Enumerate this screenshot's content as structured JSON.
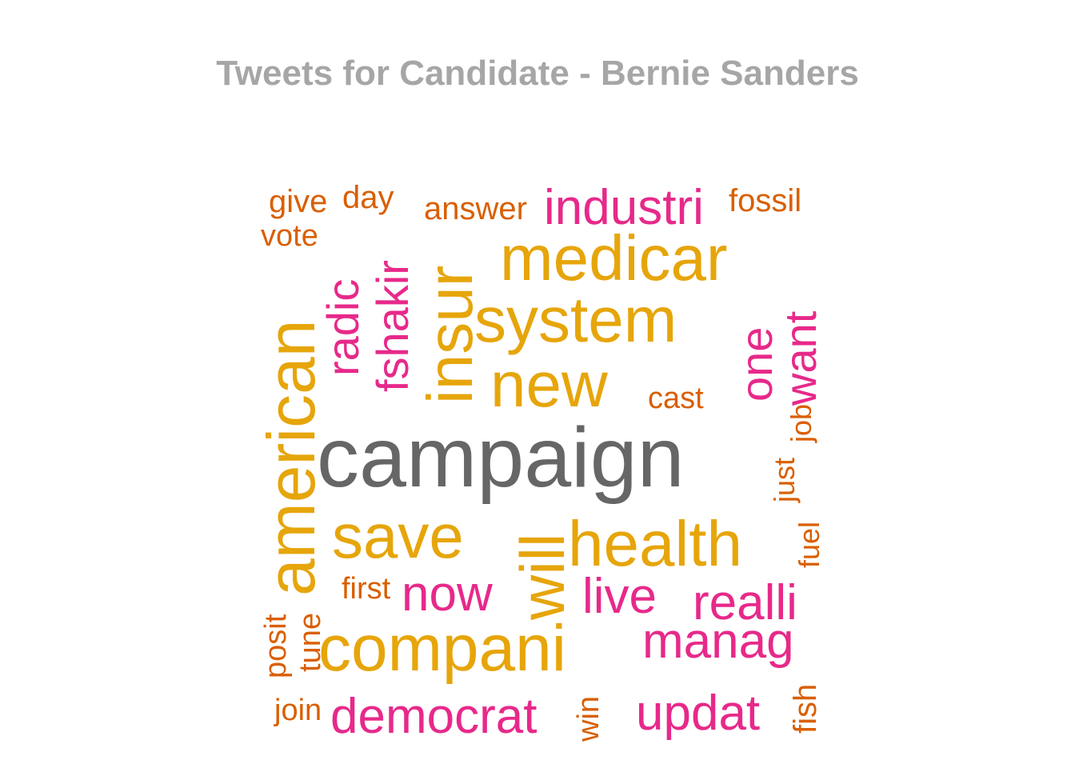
{
  "title": "Tweets for Candidate - Bernie Sanders",
  "colors": {
    "title": "#a6a6a6",
    "gray": "#666666",
    "gold": "#e6a50a",
    "pink": "#e7298a",
    "orange": "#d95f02"
  },
  "words": [
    {
      "text": "campaign",
      "color": "gray"
    },
    {
      "text": "american",
      "color": "gold"
    },
    {
      "text": "medicar",
      "color": "gold"
    },
    {
      "text": "system",
      "color": "gold"
    },
    {
      "text": "insur",
      "color": "gold"
    },
    {
      "text": "new",
      "color": "gold"
    },
    {
      "text": "save",
      "color": "gold"
    },
    {
      "text": "health",
      "color": "gold"
    },
    {
      "text": "will",
      "color": "gold"
    },
    {
      "text": "compani",
      "color": "gold"
    },
    {
      "text": "industri",
      "color": "pink"
    },
    {
      "text": "fshakir",
      "color": "pink"
    },
    {
      "text": "radic",
      "color": "pink"
    },
    {
      "text": "want",
      "color": "pink"
    },
    {
      "text": "one",
      "color": "pink"
    },
    {
      "text": "now",
      "color": "pink"
    },
    {
      "text": "live",
      "color": "pink"
    },
    {
      "text": "realli",
      "color": "pink"
    },
    {
      "text": "manag",
      "color": "pink"
    },
    {
      "text": "democrat",
      "color": "pink"
    },
    {
      "text": "updat",
      "color": "pink"
    },
    {
      "text": "give",
      "color": "orange"
    },
    {
      "text": "day",
      "color": "orange"
    },
    {
      "text": "answer",
      "color": "orange"
    },
    {
      "text": "fossil",
      "color": "orange"
    },
    {
      "text": "vote",
      "color": "orange"
    },
    {
      "text": "cast",
      "color": "orange"
    },
    {
      "text": "job",
      "color": "orange"
    },
    {
      "text": "just",
      "color": "orange"
    },
    {
      "text": "fuel",
      "color": "orange"
    },
    {
      "text": "first",
      "color": "orange"
    },
    {
      "text": "posit",
      "color": "orange"
    },
    {
      "text": "tune",
      "color": "orange"
    },
    {
      "text": "join",
      "color": "orange"
    },
    {
      "text": "win",
      "color": "orange"
    },
    {
      "text": "fish",
      "color": "orange"
    }
  ]
}
